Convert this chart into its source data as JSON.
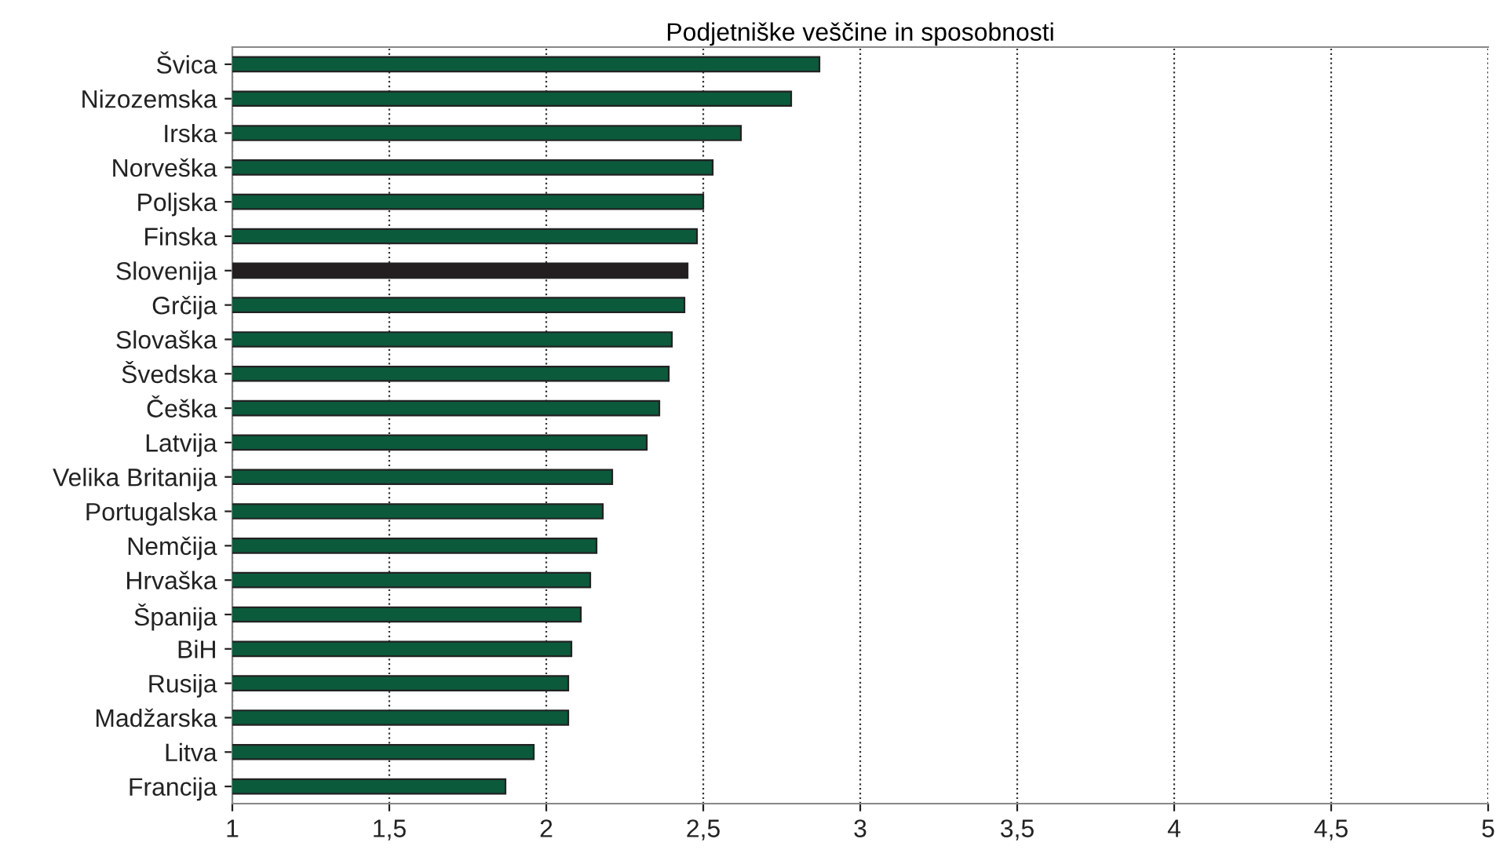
{
  "chart_data": {
    "type": "bar",
    "orientation": "horizontal",
    "title": "Podjetniške veščine in sposobnosti",
    "categories": [
      "Švica",
      "Nizozemska",
      "Irska",
      "Norveška",
      "Poljska",
      "Finska",
      "Slovenija",
      "Grčija",
      "Slovaška",
      "Švedska",
      "Češka",
      "Latvija",
      "Velika Britanija",
      "Portugalska",
      "Nemčija",
      "Hrvaška",
      "Španija",
      "BiH",
      "Rusija",
      "Madžarska",
      "Litva",
      "Francija"
    ],
    "values": [
      2.87,
      2.78,
      2.62,
      2.53,
      2.5,
      2.48,
      2.45,
      2.44,
      2.4,
      2.39,
      2.36,
      2.32,
      2.21,
      2.18,
      2.16,
      2.14,
      2.11,
      2.08,
      2.07,
      2.07,
      1.96,
      1.87
    ],
    "colors": [
      "#0b5a3c",
      "#0b5a3c",
      "#0b5a3c",
      "#0b5a3c",
      "#0b5a3c",
      "#0b5a3c",
      "#231f20",
      "#0b5a3c",
      "#0b5a3c",
      "#0b5a3c",
      "#0b5a3c",
      "#0b5a3c",
      "#0b5a3c",
      "#0b5a3c",
      "#0b5a3c",
      "#0b5a3c",
      "#0b5a3c",
      "#0b5a3c",
      "#0b5a3c",
      "#0b5a3c",
      "#0b5a3c",
      "#0b5a3c"
    ],
    "xlim": [
      1,
      5
    ],
    "xticks": [
      1,
      {
        "value": 1.5,
        "label": "1,5"
      },
      2,
      {
        "value": 2.5,
        "label": "2,5"
      },
      3,
      {
        "value": 3.5,
        "label": "3,5"
      },
      4,
      {
        "value": 4.5,
        "label": "4,5"
      },
      5
    ],
    "grid": "x"
  }
}
